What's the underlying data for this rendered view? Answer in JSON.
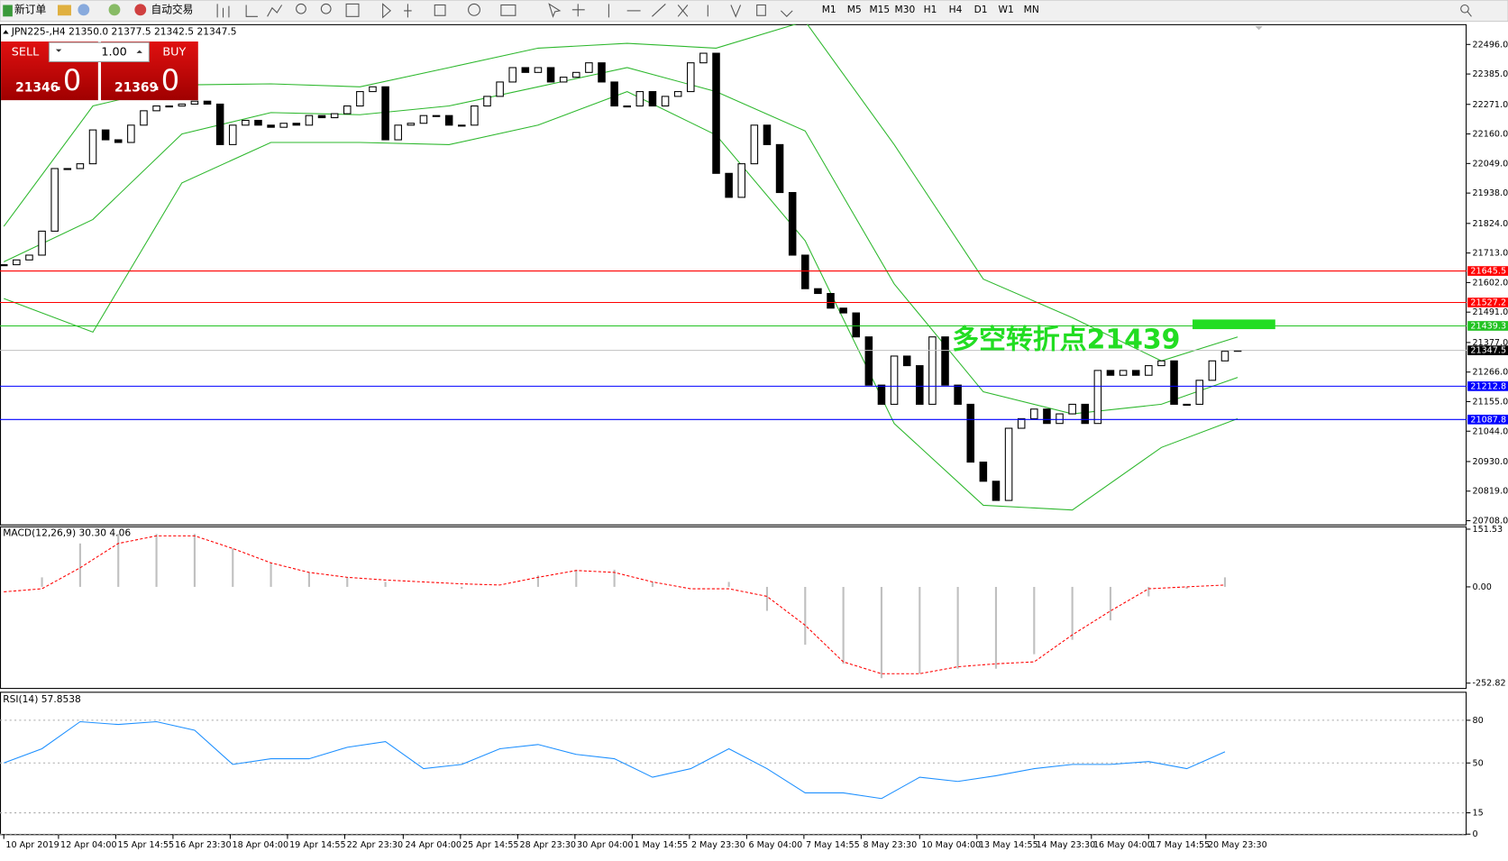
{
  "toolbar": {
    "new_order": "新订单",
    "auto_trading": "自动交易",
    "timeframes": [
      "M1",
      "M5",
      "M15",
      "M30",
      "H1",
      "H4",
      "D1",
      "W1",
      "MN"
    ]
  },
  "trade_panel": {
    "sell": "SELL",
    "lots": "1.00",
    "buy": "BUY",
    "sell_price": "21346",
    "sell_frac": ".0",
    "buy_price": "21369",
    "buy_frac": ".0"
  },
  "chart_data": [
    {
      "type": "candlestick",
      "title": "JPN225-,H4  21350.0 21377.5 21342.5 21347.5",
      "values": [
        21669,
        21687,
        21705,
        21795,
        22030,
        22030,
        22048,
        22175,
        22138,
        22128,
        22193,
        22247,
        22265,
        22265,
        22272,
        22283,
        22272,
        22120,
        22193,
        22211,
        22193,
        22185,
        22200,
        22193,
        22229,
        22221,
        22236,
        22265,
        22319,
        22337,
        22138,
        22193,
        22200,
        22229,
        22229,
        22193,
        22193,
        22265,
        22301,
        22355,
        22409,
        22391,
        22409,
        22355,
        22373,
        22391,
        22427,
        22355,
        22265,
        22265,
        22319,
        22265,
        22301,
        22319,
        22427,
        22463,
        22012,
        21922,
        22048,
        22193,
        22120,
        21940,
        21705,
        21579,
        21561,
        21506,
        21488,
        21398,
        21217,
        21145,
        21326,
        21290,
        21145,
        21398,
        21217,
        21145,
        20928,
        20856,
        20784,
        21055,
        21091,
        21127,
        21073,
        21109,
        21145,
        21073,
        21272,
        21254,
        21272,
        21254,
        21290,
        21308,
        21145,
        21145,
        21235,
        21308,
        21344,
        21347.5
      ],
      "bands": {
        "color": "#2eb82e",
        "x": [
          0,
          7,
          14,
          21,
          28,
          35,
          42,
          49,
          56,
          63,
          70,
          77,
          84,
          91,
          97
        ],
        "upper": [
          21813,
          22265,
          22344,
          22348,
          22337,
          22409,
          22482,
          22500,
          22482,
          22583,
          22120,
          21615,
          21470,
          21308,
          21398
        ],
        "middle": [
          21680,
          21839,
          22160,
          22240,
          22232,
          22265,
          22337,
          22409,
          22319,
          22171,
          21597,
          21192,
          21109,
          21145,
          21246
        ],
        "lower": [
          21542,
          21416,
          21976,
          22128,
          22128,
          22120,
          22193,
          22319,
          22156,
          21759,
          21073,
          20766,
          20748,
          20983,
          21091
        ]
      },
      "levels": [
        {
          "value": 21645.5,
          "label": "21645.5",
          "color": "#ff0000"
        },
        {
          "value": 21527.2,
          "label": "21527.2",
          "color": "#ff0000"
        },
        {
          "value": 21439.3,
          "label": "21439.3",
          "color": "#22c322"
        },
        {
          "value": 21212.8,
          "label": "21212.8",
          "color": "#0000ff"
        },
        {
          "value": 21087.8,
          "label": "21087.8",
          "color": "#0000ff"
        }
      ],
      "last_price": {
        "value": 21347.5,
        "label": "21347.5"
      },
      "annotation": "多空转折点21439",
      "xlim": [
        -0.3,
        115
      ],
      "ylim": [
        20694,
        22572
      ],
      "yticks": [
        {
          "value": 22496,
          "label": "22496.0"
        },
        {
          "value": 22385,
          "label": "22385.0"
        },
        {
          "value": 22271,
          "label": "22271.0"
        },
        {
          "value": 22160,
          "label": "22160.0"
        },
        {
          "value": 22049,
          "label": "22049.0"
        },
        {
          "value": 21938,
          "label": "21938.0"
        },
        {
          "value": 21824,
          "label": "21824.0"
        },
        {
          "value": 21713,
          "label": "21713.0"
        },
        {
          "value": 21602,
          "label": "21602.0"
        },
        {
          "value": 21491,
          "label": "21491.0"
        },
        {
          "value": 21377,
          "label": "21377.0"
        },
        {
          "value": 21266,
          "label": "21266.0"
        },
        {
          "value": 21155,
          "label": "21155.0"
        },
        {
          "value": 21044,
          "label": "21044.0"
        },
        {
          "value": 20930,
          "label": "20930.0"
        },
        {
          "value": 20819,
          "label": "20819.0"
        },
        {
          "value": 20708,
          "label": "20708.0"
        }
      ],
      "xticks": [
        {
          "value": 0,
          "label": "10 Apr 2019"
        },
        {
          "value": 4.3,
          "label": "12 Apr 04:00"
        },
        {
          "value": 8.8,
          "label": "15 Apr 14:55"
        },
        {
          "value": 13.3,
          "label": "16 Apr 23:30"
        },
        {
          "value": 17.8,
          "label": "18 Apr 04:00"
        },
        {
          "value": 22.3,
          "label": "19 Apr 14:55"
        },
        {
          "value": 26.8,
          "label": "22 Apr 23:30"
        },
        {
          "value": 31.4,
          "label": "24 Apr 04:00"
        },
        {
          "value": 35.9,
          "label": "25 Apr 14:55"
        },
        {
          "value": 40.4,
          "label": "28 Apr 23:30"
        },
        {
          "value": 44.9,
          "label": "30 Apr 04:00"
        },
        {
          "value": 49.4,
          "label": "1 May 14:55"
        },
        {
          "value": 53.9,
          "label": "2 May 23:30"
        },
        {
          "value": 58.4,
          "label": "6 May 04:00"
        },
        {
          "value": 62.9,
          "label": "7 May 14:55"
        },
        {
          "value": 67.4,
          "label": "8 May 23:30"
        },
        {
          "value": 72,
          "label": "10 May 04:00"
        },
        {
          "value": 76.5,
          "label": "13 May 14:55"
        },
        {
          "value": 81,
          "label": "14 May 23:30"
        },
        {
          "value": 85.5,
          "label": "16 May 04:00"
        },
        {
          "value": 90,
          "label": "17 May 14:55"
        },
        {
          "value": 94.5,
          "label": "20 May 23:30"
        }
      ]
    },
    {
      "type": "bar",
      "title": "MACD(12,26,9) 30.30 4.06",
      "x": [
        0,
        3,
        6,
        9,
        12,
        15,
        18,
        21,
        24,
        27,
        30,
        33,
        36,
        39,
        42,
        45,
        48,
        51,
        54,
        57,
        60,
        63,
        66,
        69,
        72,
        75,
        78,
        81,
        84,
        87,
        90,
        93,
        96
      ],
      "values": [
        0,
        25,
        114,
        139,
        139,
        139,
        101,
        63,
        38,
        25,
        13,
        0,
        -5,
        0,
        30,
        45,
        45,
        13,
        0,
        13,
        -63,
        -152,
        -202,
        -240,
        -228,
        -215,
        -215,
        -177,
        -139,
        -88,
        -25,
        -5,
        25
      ],
      "color": "#c0c0c0",
      "signal": {
        "color": "#ff0000",
        "values": [
          -13,
          -5,
          50,
          114,
          134,
          134,
          101,
          63,
          38,
          25,
          18,
          13,
          8,
          5,
          25,
          43,
          38,
          13,
          -5,
          -5,
          -25,
          -101,
          -197,
          -228,
          -228,
          -210,
          -202,
          -197,
          -126,
          -63,
          -5,
          0,
          5
        ]
      },
      "xlim": [
        -0.3,
        115
      ],
      "ylim": [
        -268,
        159
      ],
      "yticks": [
        151.53,
        {
          "value": 0,
          "label": "0.00"
        },
        -252.82
      ]
    },
    {
      "type": "line",
      "title": "RSI(14) 57.8538",
      "x": [
        0,
        3,
        6,
        9,
        12,
        15,
        18,
        21,
        24,
        27,
        30,
        33,
        36,
        39,
        42,
        45,
        48,
        51,
        54,
        57,
        60,
        63,
        66,
        69,
        72,
        75,
        78,
        81,
        84,
        87,
        90,
        93,
        96
      ],
      "values": [
        50,
        60,
        79,
        77,
        79,
        73,
        49,
        53,
        53,
        61,
        65,
        46,
        49,
        60,
        63,
        56,
        53,
        40,
        46,
        60,
        46,
        29,
        29,
        25,
        40,
        37,
        41,
        46,
        49,
        49,
        51,
        46,
        57.85
      ],
      "color": "#1e90ff",
      "xlim": [
        -0.3,
        115
      ],
      "ylim": [
        0,
        100
      ],
      "yticks": [
        80,
        50,
        15,
        0
      ]
    }
  ]
}
